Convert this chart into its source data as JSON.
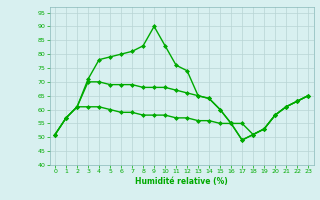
{
  "xlabel": "Humidité relative (%)",
  "background_color": "#d8f0f0",
  "grid_color": "#b8d4d4",
  "line_color": "#00aa00",
  "marker": "D",
  "markersize": 2,
  "linewidth": 1.0,
  "xlim": [
    -0.5,
    23.5
  ],
  "ylim": [
    40,
    97
  ],
  "yticks": [
    40,
    45,
    50,
    55,
    60,
    65,
    70,
    75,
    80,
    85,
    90,
    95
  ],
  "xticks": [
    0,
    1,
    2,
    3,
    4,
    5,
    6,
    7,
    8,
    9,
    10,
    11,
    12,
    13,
    14,
    15,
    16,
    17,
    18,
    19,
    20,
    21,
    22,
    23
  ],
  "series": [
    {
      "x": [
        0,
        1,
        2,
        3,
        4,
        5,
        6,
        7,
        8,
        9,
        10,
        11,
        12,
        13,
        14,
        15,
        16,
        17,
        18,
        19,
        20,
        21,
        22,
        23
      ],
      "y": [
        51,
        57,
        61,
        71,
        78,
        79,
        80,
        81,
        83,
        90,
        83,
        76,
        74,
        65,
        64,
        60,
        55,
        49,
        51,
        53,
        58,
        61,
        63,
        65
      ]
    },
    {
      "x": [
        0,
        1,
        2,
        3,
        4,
        5,
        6,
        7,
        8,
        9,
        10,
        11,
        12,
        13,
        14,
        15,
        16,
        17,
        18,
        19,
        20,
        21,
        22,
        23
      ],
      "y": [
        51,
        57,
        61,
        70,
        70,
        69,
        69,
        69,
        68,
        68,
        68,
        67,
        66,
        65,
        64,
        60,
        55,
        49,
        51,
        53,
        58,
        61,
        63,
        65
      ]
    },
    {
      "x": [
        0,
        1,
        2,
        3,
        4,
        5,
        6,
        7,
        8,
        9,
        10,
        11,
        12,
        13,
        14,
        15,
        16,
        17,
        18,
        19,
        20,
        21,
        22,
        23
      ],
      "y": [
        51,
        57,
        61,
        61,
        61,
        60,
        59,
        59,
        58,
        58,
        58,
        57,
        57,
        56,
        56,
        55,
        55,
        55,
        51,
        53,
        58,
        61,
        63,
        65
      ]
    }
  ]
}
